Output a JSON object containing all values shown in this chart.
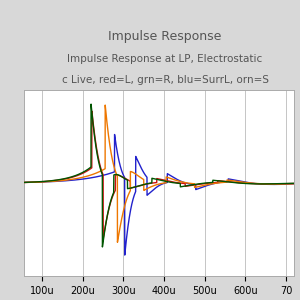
{
  "title_line1": "Impulse Response",
  "title_line2": "Impulse Response at LP, Electrostatic",
  "title_line3": "c Live, red=L, grn=R, blu=SurrL, orn=S",
  "bg_color": "#d8d8d8",
  "plot_bg_color": "#ffffff",
  "grid_color": "#bbbbbb",
  "xlim_start": 5.5e-05,
  "xlim_end": 0.00072,
  "xticklabels": [
    "100u",
    "200u",
    "300u",
    "400u",
    "500u",
    "600u",
    "70"
  ],
  "colors": {
    "red": "#cc1111",
    "green": "#005500",
    "blue": "#2222cc",
    "orange": "#ee7700"
  },
  "line_width": 1.0
}
